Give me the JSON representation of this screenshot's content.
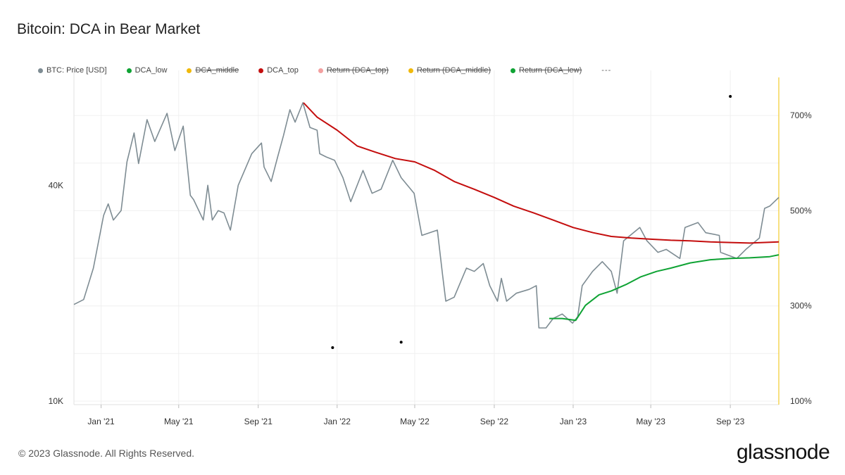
{
  "title": "Bitcoin: DCA in Bear Market",
  "legend": [
    {
      "label": "BTC: Price [USD]",
      "color": "#7e8c93",
      "enabled": true
    },
    {
      "label": "DCA_low",
      "color": "#0fa334",
      "enabled": true
    },
    {
      "label": "DCA_middle",
      "color": "#f0b90b",
      "enabled": false
    },
    {
      "label": "DCA_top",
      "color": "#c40d0d",
      "enabled": true
    },
    {
      "label": "Return (DCA_top)",
      "color": "#f3a0a0",
      "enabled": false
    },
    {
      "label": "Return (DCA_middle)",
      "color": "#f0b90b",
      "enabled": false
    },
    {
      "label": "Return (DCA_low)",
      "color": "#0fa334",
      "enabled": false
    }
  ],
  "legend_more": "---",
  "footer": {
    "copyright": "© 2023 Glassnode. All Rights Reserved.",
    "brand": "glassnode"
  },
  "chart_data": {
    "type": "line",
    "title": "Bitcoin: DCA in Bear Market",
    "x_axis": {
      "type": "date",
      "range": [
        "2020-11-20",
        "2023-11-15"
      ],
      "ticks": [
        {
          "date": "2021-01-01",
          "label": "Jan '21"
        },
        {
          "date": "2021-05-01",
          "label": "May '21"
        },
        {
          "date": "2021-09-01",
          "label": "Sep '21"
        },
        {
          "date": "2022-01-01",
          "label": "Jan '22"
        },
        {
          "date": "2022-05-01",
          "label": "May '22"
        },
        {
          "date": "2022-09-01",
          "label": "Sep '22"
        },
        {
          "date": "2023-01-01",
          "label": "Jan '23"
        },
        {
          "date": "2023-05-01",
          "label": "May '23"
        },
        {
          "date": "2023-09-01",
          "label": "Sep '23"
        }
      ]
    },
    "y_axis_left": {
      "scale": "log",
      "range": [
        10000,
        80000
      ],
      "ticks": [
        {
          "value": 10000,
          "label": "10K"
        },
        {
          "value": 40000,
          "label": "40K"
        }
      ]
    },
    "y_axis_right": {
      "scale": "linear",
      "range": [
        100,
        780
      ],
      "ticks": [
        {
          "value": 100,
          "label": "100%"
        },
        {
          "value": 300,
          "label": "300%"
        },
        {
          "value": 500,
          "label": "500%"
        },
        {
          "value": 700,
          "label": "700%"
        }
      ]
    },
    "grid": true,
    "series": [
      {
        "name": "BTC: Price [USD]",
        "color": "#7e8c93",
        "axis": "left",
        "points": [
          [
            "2020-11-20",
            18600
          ],
          [
            "2020-12-05",
            19200
          ],
          [
            "2020-12-20",
            23500
          ],
          [
            "2021-01-05",
            33000
          ],
          [
            "2021-01-12",
            35500
          ],
          [
            "2021-01-20",
            32000
          ],
          [
            "2021-02-01",
            34000
          ],
          [
            "2021-02-10",
            46500
          ],
          [
            "2021-02-21",
            56000
          ],
          [
            "2021-02-28",
            46000
          ],
          [
            "2021-03-13",
            61000
          ],
          [
            "2021-03-25",
            53000
          ],
          [
            "2021-04-13",
            63500
          ],
          [
            "2021-04-25",
            50000
          ],
          [
            "2021-05-08",
            58500
          ],
          [
            "2021-05-19",
            37500
          ],
          [
            "2021-05-24",
            36500
          ],
          [
            "2021-06-08",
            32000
          ],
          [
            "2021-06-15",
            40000
          ],
          [
            "2021-06-22",
            32000
          ],
          [
            "2021-07-01",
            34000
          ],
          [
            "2021-07-10",
            33500
          ],
          [
            "2021-07-20",
            30000
          ],
          [
            "2021-08-01",
            40000
          ],
          [
            "2021-08-22",
            49000
          ],
          [
            "2021-09-06",
            52500
          ],
          [
            "2021-09-10",
            45000
          ],
          [
            "2021-09-21",
            41000
          ],
          [
            "2021-10-01",
            48000
          ],
          [
            "2021-10-10",
            55000
          ],
          [
            "2021-10-20",
            65000
          ],
          [
            "2021-10-28",
            60000
          ],
          [
            "2021-11-09",
            68000
          ],
          [
            "2021-11-20",
            58000
          ],
          [
            "2021-12-01",
            57000
          ],
          [
            "2021-12-05",
            49000
          ],
          [
            "2021-12-15",
            48000
          ],
          [
            "2021-12-28",
            47000
          ],
          [
            "2022-01-10",
            42000
          ],
          [
            "2022-01-22",
            36000
          ],
          [
            "2022-02-10",
            44000
          ],
          [
            "2022-02-24",
            38000
          ],
          [
            "2022-03-10",
            39000
          ],
          [
            "2022-03-28",
            47000
          ],
          [
            "2022-04-10",
            42000
          ],
          [
            "2022-04-30",
            38000
          ],
          [
            "2022-05-09",
            31000
          ],
          [
            "2022-05-12",
            29000
          ],
          [
            "2022-06-05",
            30000
          ],
          [
            "2022-06-13",
            22500
          ],
          [
            "2022-06-18",
            19000
          ],
          [
            "2022-07-01",
            19500
          ],
          [
            "2022-07-20",
            23500
          ],
          [
            "2022-08-01",
            23000
          ],
          [
            "2022-08-15",
            24200
          ],
          [
            "2022-08-25",
            21000
          ],
          [
            "2022-09-06",
            19000
          ],
          [
            "2022-09-12",
            22000
          ],
          [
            "2022-09-20",
            19000
          ],
          [
            "2022-10-05",
            20000
          ],
          [
            "2022-10-25",
            20500
          ],
          [
            "2022-11-05",
            21000
          ],
          [
            "2022-11-09",
            16000
          ],
          [
            "2022-11-20",
            16000
          ],
          [
            "2022-12-01",
            17000
          ],
          [
            "2022-12-15",
            17500
          ],
          [
            "2022-12-31",
            16500
          ],
          [
            "2023-01-08",
            17200
          ],
          [
            "2023-01-15",
            21000
          ],
          [
            "2023-01-31",
            23000
          ],
          [
            "2023-02-15",
            24500
          ],
          [
            "2023-03-01",
            23000
          ],
          [
            "2023-03-10",
            20000
          ],
          [
            "2023-03-20",
            28000
          ],
          [
            "2023-04-14",
            30500
          ],
          [
            "2023-04-25",
            28000
          ],
          [
            "2023-05-12",
            26000
          ],
          [
            "2023-05-25",
            26500
          ],
          [
            "2023-06-15",
            25000
          ],
          [
            "2023-06-23",
            30500
          ],
          [
            "2023-07-13",
            31500
          ],
          [
            "2023-07-25",
            29500
          ],
          [
            "2023-08-15",
            29000
          ],
          [
            "2023-08-17",
            26000
          ],
          [
            "2023-09-11",
            25000
          ],
          [
            "2023-09-25",
            26500
          ],
          [
            "2023-10-16",
            28500
          ],
          [
            "2023-10-24",
            34500
          ],
          [
            "2023-11-01",
            35000
          ],
          [
            "2023-11-15",
            37000
          ]
        ]
      },
      {
        "name": "DCA_top",
        "color": "#c40d0d",
        "axis": "left",
        "points": [
          [
            "2021-11-10",
            68000
          ],
          [
            "2021-12-01",
            62000
          ],
          [
            "2022-01-01",
            57000
          ],
          [
            "2022-02-01",
            51500
          ],
          [
            "2022-03-01",
            49500
          ],
          [
            "2022-04-01",
            47500
          ],
          [
            "2022-05-01",
            46500
          ],
          [
            "2022-06-01",
            44000
          ],
          [
            "2022-07-01",
            41000
          ],
          [
            "2022-08-01",
            39000
          ],
          [
            "2022-09-01",
            37000
          ],
          [
            "2022-10-01",
            35000
          ],
          [
            "2022-11-01",
            33500
          ],
          [
            "2022-12-01",
            32000
          ],
          [
            "2023-01-01",
            30500
          ],
          [
            "2023-02-01",
            29500
          ],
          [
            "2023-03-01",
            28800
          ],
          [
            "2023-04-01",
            28500
          ],
          [
            "2023-05-01",
            28300
          ],
          [
            "2023-06-01",
            28100
          ],
          [
            "2023-07-01",
            28000
          ],
          [
            "2023-08-01",
            27800
          ],
          [
            "2023-09-01",
            27700
          ],
          [
            "2023-10-01",
            27600
          ],
          [
            "2023-11-15",
            27800
          ]
        ]
      },
      {
        "name": "DCA_low",
        "color": "#0fa334",
        "axis": "left",
        "points": [
          [
            "2022-11-25",
            17000
          ],
          [
            "2022-12-15",
            17000
          ],
          [
            "2023-01-05",
            16800
          ],
          [
            "2023-01-20",
            18500
          ],
          [
            "2023-02-10",
            19800
          ],
          [
            "2023-03-01",
            20300
          ],
          [
            "2023-03-25",
            21200
          ],
          [
            "2023-04-15",
            22200
          ],
          [
            "2023-05-10",
            23000
          ],
          [
            "2023-06-01",
            23500
          ],
          [
            "2023-07-01",
            24300
          ],
          [
            "2023-08-01",
            24800
          ],
          [
            "2023-09-01",
            25000
          ],
          [
            "2023-10-01",
            25100
          ],
          [
            "2023-11-01",
            25300
          ],
          [
            "2023-11-15",
            25600
          ]
        ]
      }
    ],
    "annotations": [
      {
        "type": "dot",
        "date": "2021-12-25",
        "value": 14100,
        "axis": "left"
      },
      {
        "type": "dot",
        "date": "2022-04-10",
        "value": 14600,
        "axis": "left"
      },
      {
        "type": "dot",
        "date": "2023-09-01",
        "value": 740,
        "axis": "right"
      }
    ]
  }
}
